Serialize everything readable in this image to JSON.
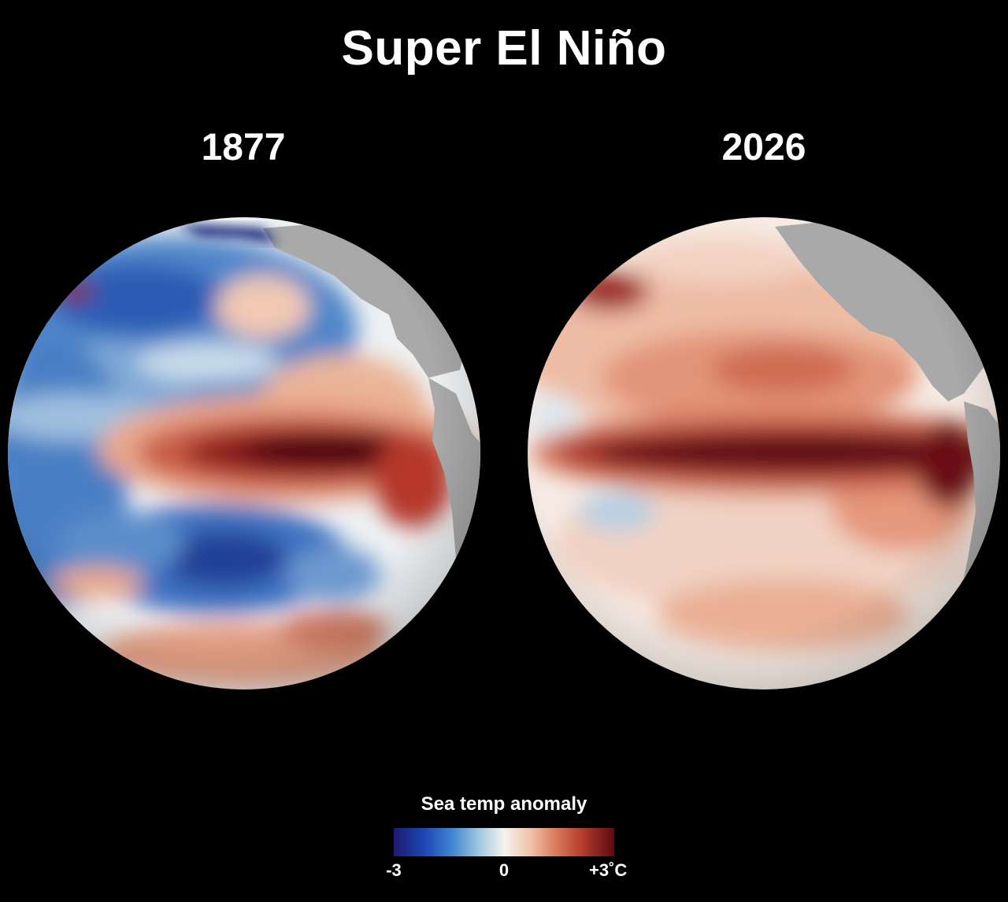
{
  "title": "Super El Niño",
  "maps": [
    {
      "year": "1877",
      "anomaly_pattern": "cool-blue North and South Pacific, intense warm equatorial tongue in central-eastern Pacific"
    },
    {
      "year": "2026",
      "anomaly_pattern": "broad warm anomalies across Pacific, intense warm equatorial band extending to South America"
    }
  ],
  "legend": {
    "title": "Sea temp anomaly",
    "min_label": "-3",
    "mid_label": "0",
    "max_label": "+3˚C",
    "min_value": -3,
    "max_value": 3,
    "colors": [
      "#1d1a6e",
      "#1c47b5",
      "#3f82cf",
      "#9cc4e0",
      "#f4f2ef",
      "#f0c2a8",
      "#d9775a",
      "#b23a2a",
      "#5c0a14"
    ]
  },
  "land_color": "#a9a9a9",
  "background_color": "#000000"
}
